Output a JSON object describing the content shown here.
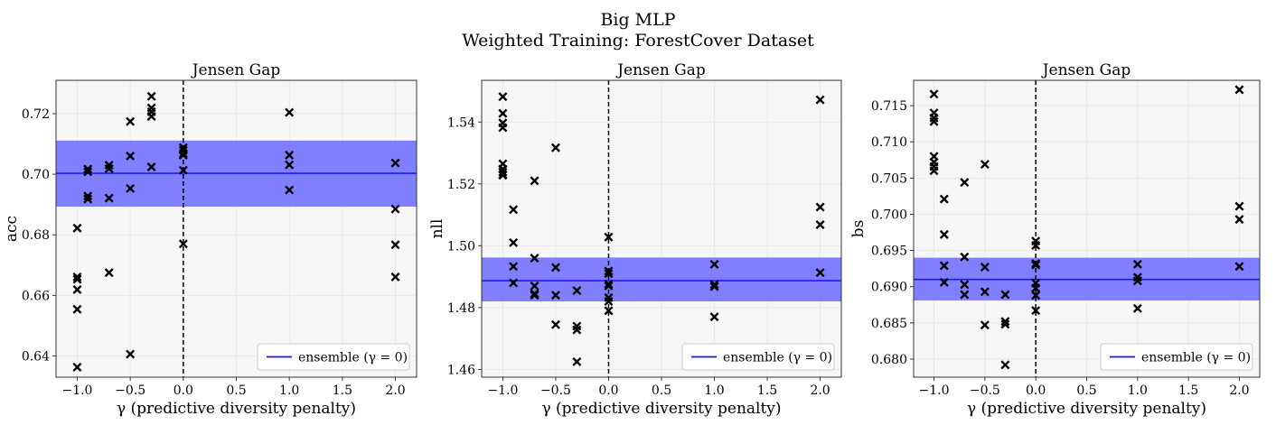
{
  "figure": {
    "title": "Big MLP",
    "subtitle": "Weighted Training: ForestCover Dataset"
  },
  "colors": {
    "band": "#7f7fff",
    "line": "#1a1aff",
    "plot_bg": "#f7f7f7",
    "grid": "#e6e6e6",
    "marker": "#000000"
  },
  "chart_data": [
    {
      "type": "scatter",
      "title": "Jensen Gap",
      "xlabel": "γ (predictive diversity penalty)",
      "ylabel": "acc",
      "xlim": [
        -1.2,
        2.2
      ],
      "ylim": [
        0.633,
        0.731
      ],
      "xticks": [
        -1.0,
        -0.5,
        0.0,
        0.5,
        1.0,
        1.5,
        2.0
      ],
      "xtick_labels": [
        "−1.0",
        "−0.5",
        "0.0",
        "0.5",
        "1.0",
        "1.5",
        "2.0"
      ],
      "yticks": [
        0.64,
        0.66,
        0.68,
        0.7,
        0.72
      ],
      "ytick_labels": [
        "0.64",
        "0.66",
        "0.68",
        "0.70",
        "0.72"
      ],
      "legend": {
        "label": "ensemble (γ = 0)",
        "location": "lower right"
      },
      "ensemble": {
        "value": 0.7003,
        "band": [
          0.6893,
          0.7111
        ]
      },
      "reference_x": 0.0,
      "points": {
        "x": [
          -1,
          -1,
          -1,
          -1,
          -1,
          -1,
          -0.9,
          -0.9,
          -0.9,
          -0.9,
          -0.7,
          -0.7,
          -0.7,
          -0.7,
          -0.5,
          -0.5,
          -0.5,
          -0.5,
          -0.3,
          -0.3,
          -0.3,
          -0.3,
          -0.3,
          0,
          0,
          0,
          0,
          0,
          0,
          1,
          1,
          1,
          1,
          2,
          2,
          2,
          2
        ],
        "y": [
          0.6822,
          0.6661,
          0.6653,
          0.6619,
          0.6554,
          0.6363,
          0.7017,
          0.7008,
          0.6928,
          0.6918,
          0.703,
          0.7018,
          0.6921,
          0.6675,
          0.7174,
          0.706,
          0.6953,
          0.6406,
          0.7257,
          0.7219,
          0.7206,
          0.7191,
          0.7024,
          0.7088,
          0.7079,
          0.7068,
          0.7063,
          0.7013,
          0.677,
          0.7204,
          0.7063,
          0.7031,
          0.6948,
          0.7037,
          0.6885,
          0.6767,
          0.6661
        ]
      }
    },
    {
      "type": "scatter",
      "title": "Jensen Gap",
      "xlabel": "γ (predictive diversity penalty)",
      "ylabel": "nll",
      "xlim": [
        -1.2,
        2.2
      ],
      "ylim": [
        1.4575,
        1.5535
      ],
      "xticks": [
        -1.0,
        -0.5,
        0.0,
        0.5,
        1.0,
        1.5,
        2.0
      ],
      "xtick_labels": [
        "−1.0",
        "−0.5",
        "0.0",
        "0.5",
        "1.0",
        "1.5",
        "2.0"
      ],
      "yticks": [
        1.46,
        1.48,
        1.5,
        1.52,
        1.54
      ],
      "ytick_labels": [
        "1.46",
        "1.48",
        "1.50",
        "1.52",
        "1.54"
      ],
      "legend": {
        "label": "ensemble (γ = 0)",
        "location": "lower right"
      },
      "ensemble": {
        "value": 1.4887,
        "band": [
          1.482,
          1.4962
        ]
      },
      "reference_x": 0.0,
      "points": {
        "x": [
          -1,
          -1,
          -1,
          -1,
          -1,
          -1,
          -1,
          -1,
          -1,
          -0.9,
          -0.9,
          -0.9,
          -0.9,
          -0.7,
          -0.7,
          -0.7,
          -0.7,
          -0.7,
          -0.5,
          -0.5,
          -0.5,
          -0.5,
          -0.3,
          -0.3,
          -0.3,
          -0.3,
          0,
          0,
          0,
          0,
          0,
          0,
          0,
          0,
          1,
          1,
          1,
          1,
          2,
          2,
          2,
          2
        ],
        "y": [
          1.5482,
          1.5428,
          1.5397,
          1.5382,
          1.5265,
          1.5248,
          1.5238,
          1.5228,
          1.523,
          1.5117,
          1.501,
          1.4933,
          1.488,
          1.521,
          1.496,
          1.487,
          1.4845,
          1.484,
          1.5317,
          1.493,
          1.484,
          1.4745,
          1.4855,
          1.474,
          1.4728,
          1.4625,
          1.5028,
          1.4918,
          1.491,
          1.4876,
          1.487,
          1.4832,
          1.482,
          1.479,
          1.494,
          1.4875,
          1.4868,
          1.477,
          1.5472,
          1.5125,
          1.5068,
          1.4913
        ]
      }
    },
    {
      "type": "scatter",
      "title": "Jensen Gap",
      "xlabel": "γ (predictive diversity penalty)",
      "ylabel": "bs",
      "xlim": [
        -1.2,
        2.2
      ],
      "ylim": [
        0.6775,
        0.7185
      ],
      "xticks": [
        -1.0,
        -0.5,
        0.0,
        0.5,
        1.0,
        1.5,
        2.0
      ],
      "xtick_labels": [
        "−1.0",
        "−0.5",
        "0.0",
        "0.5",
        "1.0",
        "1.5",
        "2.0"
      ],
      "yticks": [
        0.68,
        0.685,
        0.69,
        0.695,
        0.7,
        0.705,
        0.71,
        0.715
      ],
      "ytick_labels": [
        "0.680",
        "0.685",
        "0.690",
        "0.695",
        "0.700",
        "0.705",
        "0.710",
        "0.715"
      ],
      "legend": {
        "label": "ensemble (γ = 0)",
        "location": "lower right"
      },
      "ensemble": {
        "value": 0.691,
        "band": [
          0.6881,
          0.694
        ]
      },
      "reference_x": 0.0,
      "points": {
        "x": [
          -1,
          -1,
          -1,
          -1,
          -1,
          -1,
          -1,
          -1,
          -0.9,
          -0.9,
          -0.9,
          -0.9,
          -0.7,
          -0.7,
          -0.7,
          -0.7,
          -0.5,
          -0.5,
          -0.5,
          -0.5,
          -0.3,
          -0.3,
          -0.3,
          -0.3,
          0,
          0,
          0,
          0,
          0,
          0,
          0,
          0,
          1,
          1,
          1,
          1,
          2,
          2,
          2,
          2
        ],
        "y": [
          0.7166,
          0.714,
          0.7133,
          0.7128,
          0.708,
          0.7072,
          0.7066,
          0.706,
          0.7021,
          0.6972,
          0.6929,
          0.6906,
          0.7044,
          0.6941,
          0.6903,
          0.6889,
          0.7069,
          0.6927,
          0.6893,
          0.6847,
          0.6889,
          0.6852,
          0.6848,
          0.6792,
          0.6963,
          0.6957,
          0.6932,
          0.693,
          0.6905,
          0.6898,
          0.6888,
          0.6867,
          0.6931,
          0.6913,
          0.6908,
          0.687,
          0.7172,
          0.7011,
          0.6993,
          0.6928
        ]
      }
    }
  ]
}
